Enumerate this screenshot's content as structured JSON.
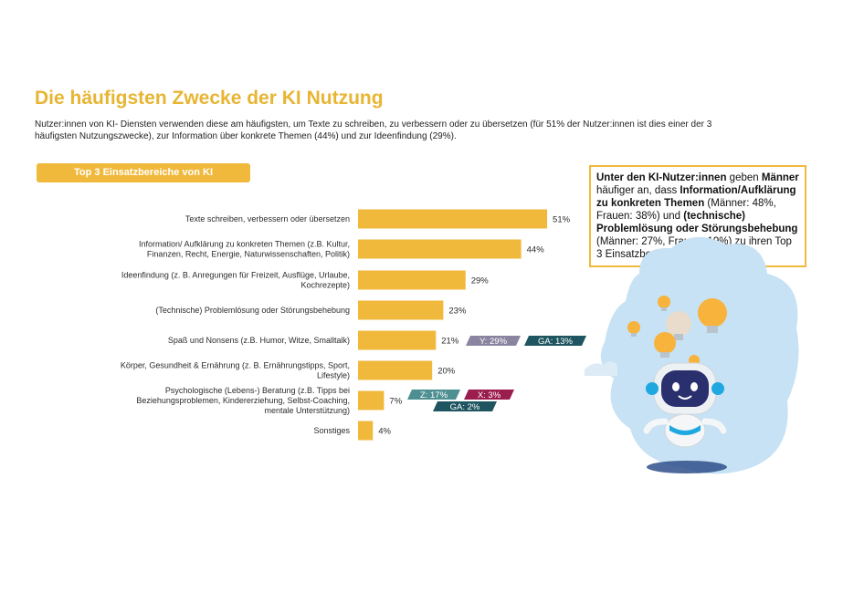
{
  "header": {
    "title": "Die häufigsten Zwecke der KI Nutzung",
    "subtitle": "Nutzer:innen von KI- Diensten verwenden diese am häufigsten, um Texte zu schreiben, zu verbessern oder zu übersetzen (für 51% der Nutzer:innen ist dies einer der 3 häufigsten Nutzungszwecke), zur Information über konkrete Themen (44%) und zur Ideenfindung (29%)."
  },
  "chart_label": "Top 3 Einsatzbereiche von KI",
  "callout": {
    "p1": "Unter den KI-Nutzer:innen",
    "p2": " geben ",
    "p3": "Männer",
    "p4": " häufiger an, dass ",
    "p5": "Information/Aufklärung zu konkreten Themen",
    "p6": " (Männer: 48%, Frauen: 38%) und ",
    "p7": "(technische) Problemlösung oder Störungsbehebung",
    "p8": " (Männer: 27%, Frauen: 19%) zu ihren Top 3 Einsatzbereichen von KI zählen."
  },
  "colors": {
    "bar": "#f0b93c",
    "title": "#e8b533",
    "y_badge": "#8a84a0",
    "ga_badge": "#1f5560",
    "z_badge": "#4e8f92",
    "x_badge": "#9b1d4d"
  },
  "chart_data": {
    "type": "bar",
    "orientation": "horizontal",
    "xlim": [
      0,
      100
    ],
    "categories": [
      [
        "Texte schreiben, verbessern oder übersetzen"
      ],
      [
        "Information/ Aufklärung zu konkreten Themen (z.B. Kultur,",
        "Finanzen, Recht, Energie, Naturwissenschaften, Politik)"
      ],
      [
        "Ideenfindung (z. B. Anregungen für Freizeit, Ausflüge, Urlaube,",
        "Kochrezepte)"
      ],
      [
        "(Technische) Problemlösung oder Störungsbehebung"
      ],
      [
        "Spaß und Nonsens (z.B. Humor, Witze, Smalltalk)"
      ],
      [
        "Körper, Gesundheit & Ernährung (z. B. Ernährungstipps, Sport,",
        "Lifestyle)"
      ],
      [
        "Psychologische (Lebens-) Beratung (z.B. Tipps bei",
        "Beziehungsproblemen, Kindererziehung, Selbst-Coaching,",
        "mentale Unterstützung)"
      ],
      [
        "Sonstiges"
      ]
    ],
    "values": [
      51,
      44,
      29,
      23,
      21,
      20,
      7,
      4
    ],
    "value_labels": [
      "51%",
      "44%",
      "29%",
      "23%",
      "21%",
      "20%",
      "7%",
      "4%"
    ],
    "annotations": [
      {
        "row": 4,
        "text": "Y: 29%",
        "color": "#8a84a0"
      },
      {
        "row": 4,
        "text": "GA: 13%",
        "color": "#1f5560"
      },
      {
        "row": 6,
        "text": "Z: 17%",
        "color": "#4e8f92"
      },
      {
        "row": 6,
        "text": "X: 3%",
        "color": "#9b1d4d"
      },
      {
        "row": 6,
        "text": "GA: 2%",
        "color": "#1f5560"
      }
    ]
  }
}
